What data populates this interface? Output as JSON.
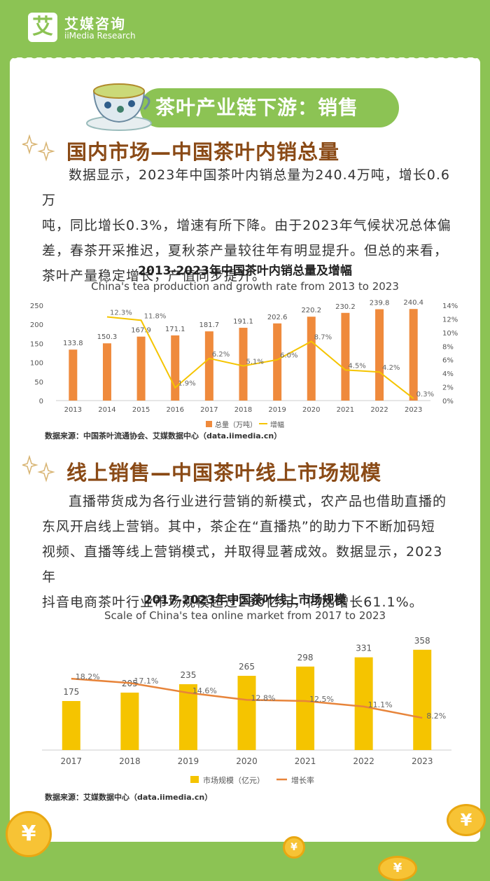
{
  "header": {
    "logo_mark": "艾",
    "brand_cn": "艾媒咨询",
    "brand_en": "iiMedia Research"
  },
  "banner": {
    "title": "茶叶产业链下游：销售"
  },
  "section1": {
    "title": "国内市场—中国茶叶内销总量",
    "paragraph": [
      "数据显示，2023年中国茶叶内销总量为240.4万吨，增长0.6万",
      "吨，同比增长0.3%，增速有所下降。由于2023年气候状况总体偏",
      "差，春茶开采推迟，夏秋茶产量较往年有明显提升。但总的来看，",
      "茶叶产量稳定增长，产值同步提升。"
    ]
  },
  "chart1": {
    "title": "2013-2023年中国茶叶内销总量及增幅",
    "subtitle": "China's tea production and growth rate from 2013 to 2023",
    "source": "数据来源：中国茶叶流通协会、艾媒数据中心（data.iimedia.cn）"
  },
  "section2": {
    "title": "线上销售—中国茶叶线上市场规模",
    "paragraph": [
      "直播带货成为各行业进行营销的新模式，农产品也借助直播的",
      "东风开启线上营销。其中，茶企在“直播热”的助力下不断加码短",
      "视频、直播等线上营销模式，并取得显著成效。数据显示，2023年",
      "抖音电商茶叶行业市场规模超过230亿元，同比增长61.1%。"
    ]
  },
  "chart2": {
    "title": "2017-2023年中国茶叶线上市场规模",
    "subtitle": "Scale of China's tea online market from 2017 to 2023",
    "source": "数据来源：艾媒数据中心（data.iimedia.cn）"
  },
  "coin_glyph": "¥",
  "colors": {
    "green": "#8cc354",
    "orange": "#ef8a3c",
    "yellow": "#f5c400",
    "line_orange": "#e7843a",
    "title_brown": "#8a4a16"
  },
  "chart_data": [
    {
      "type": "bar",
      "categories": [
        "2013",
        "2014",
        "2015",
        "2016",
        "2017",
        "2018",
        "2019",
        "2020",
        "2021",
        "2022",
        "2023"
      ],
      "series": [
        {
          "name": "总量（万吨）",
          "type": "bar",
          "values": [
            133.8,
            150.3,
            167.9,
            171.1,
            181.7,
            191.1,
            202.6,
            220.2,
            230.2,
            239.8,
            240.4
          ],
          "labels": [
            "133.8",
            "150.3",
            "167.9",
            "171.1",
            "181.7",
            "191.1",
            "202.6",
            "220.2",
            "230.2",
            "239.8",
            "240.4"
          ]
        },
        {
          "name": "增幅",
          "type": "line",
          "axis": "right",
          "values": [
            null,
            12.3,
            11.8,
            1.9,
            6.2,
            5.1,
            6.0,
            8.7,
            4.5,
            4.2,
            0.3
          ],
          "labels": [
            null,
            "12.3%",
            "11.8%",
            "1.9%",
            "6.2%",
            "5.1%",
            "6.0%",
            "8.7%",
            "4.5%",
            "4.2%",
            "0.3%"
          ]
        }
      ],
      "ylim": [
        0,
        250
      ],
      "yticks": [
        "0",
        "50",
        "100",
        "150",
        "200",
        "250"
      ],
      "y2lim": [
        0,
        14
      ],
      "y2ticks": [
        "0%",
        "2%",
        "4%",
        "6%",
        "8%",
        "10%",
        "12%",
        "14%"
      ],
      "legend_position": "bottom"
    },
    {
      "type": "bar",
      "categories": [
        "2017",
        "2018",
        "2019",
        "2020",
        "2021",
        "2022",
        "2023"
      ],
      "series": [
        {
          "name": "市场规模（亿元）",
          "type": "bar",
          "values": [
            175,
            205,
            235,
            265,
            298,
            331,
            358
          ],
          "labels": [
            "175",
            "205",
            "235",
            "265",
            "298",
            "331",
            "358"
          ]
        },
        {
          "name": "增长率",
          "type": "line",
          "values": [
            18.2,
            17.1,
            14.6,
            12.8,
            12.5,
            11.1,
            8.2
          ],
          "labels": [
            "18.2%",
            "17.1%",
            "14.6%",
            "12.8%",
            "12.5%",
            "11.1%",
            "8.2%"
          ]
        }
      ],
      "ylim": [
        0,
        420
      ],
      "y2lim": [
        0,
        30
      ],
      "legend_position": "bottom"
    }
  ]
}
